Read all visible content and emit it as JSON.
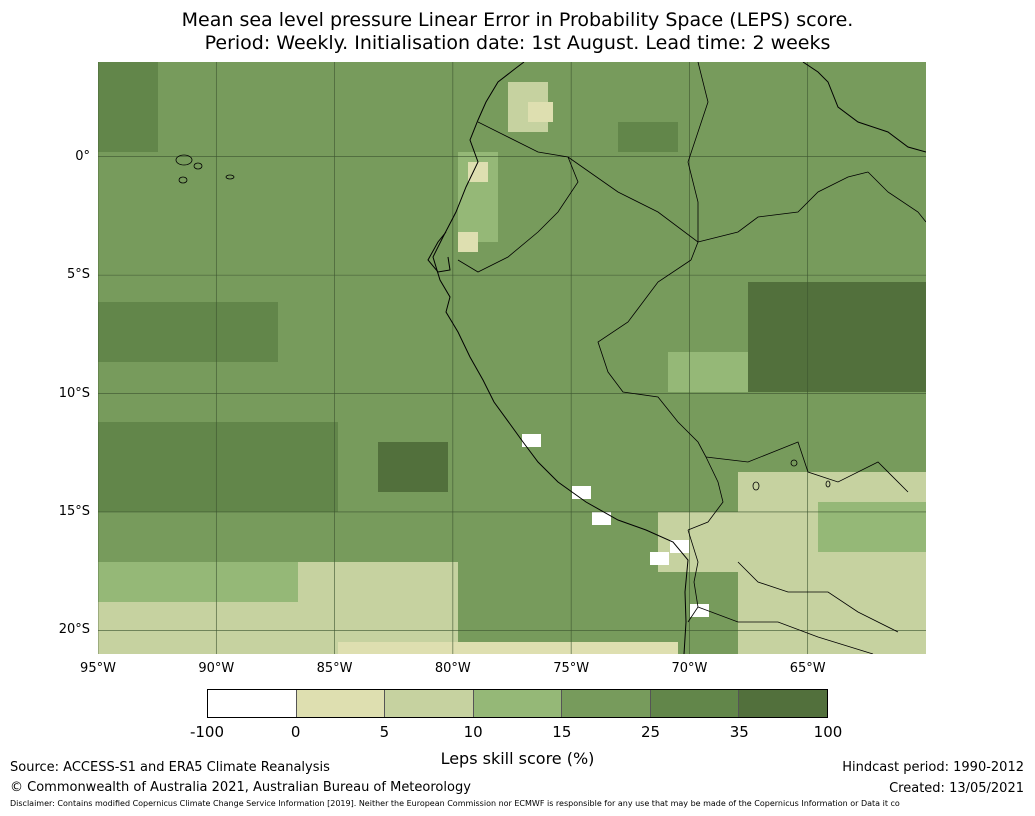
{
  "title_line1": "Mean sea level pressure Linear Error in Probability Space (LEPS) score.",
  "title_line2": "Period: Weekly. Initialisation date: 1st August. Lead time: 2 weeks",
  "map": {
    "lat_labels": [
      "0°",
      "5°S",
      "10°S",
      "15°S",
      "20°S"
    ],
    "lon_labels": [
      "95°W",
      "90°W",
      "85°W",
      "80°W",
      "75°W",
      "70°W",
      "65°W"
    ],
    "lat_values": [
      0,
      -5,
      -10,
      -15,
      -20
    ],
    "lon_values": [
      -95,
      -90,
      -85,
      -80,
      -75,
      -70,
      -65
    ],
    "extent": {
      "lon_min": -95,
      "lon_max": -60,
      "lat_min": -21,
      "lat_max": 4
    },
    "gridlines": true
  },
  "colorbar": {
    "title": "Leps skill score (%)",
    "tick_labels": [
      "-100",
      "0",
      "5",
      "10",
      "15",
      "25",
      "35",
      "100"
    ],
    "colors": [
      "#ffffff",
      "#dedfb0",
      "#c6d2a0",
      "#95b877",
      "#779b5c",
      "#62864a",
      "#52703c"
    ]
  },
  "footer": {
    "source": "Source: ACCESS-S1 and ERA5 Climate Reanalysis",
    "copyright": "© Commonwealth of Australia 2021, Australian Bureau of Meteorology",
    "hindcast": "Hindcast period: 1990-2012",
    "created": "Created: 13/05/2021",
    "disclaimer": "Disclaimer: Contains modified Copernicus Climate Change Service Information [2019]. Neither the European Commission nor ECMWF is responsible for any use that may be made of the Copernicus Information or Data it co"
  }
}
